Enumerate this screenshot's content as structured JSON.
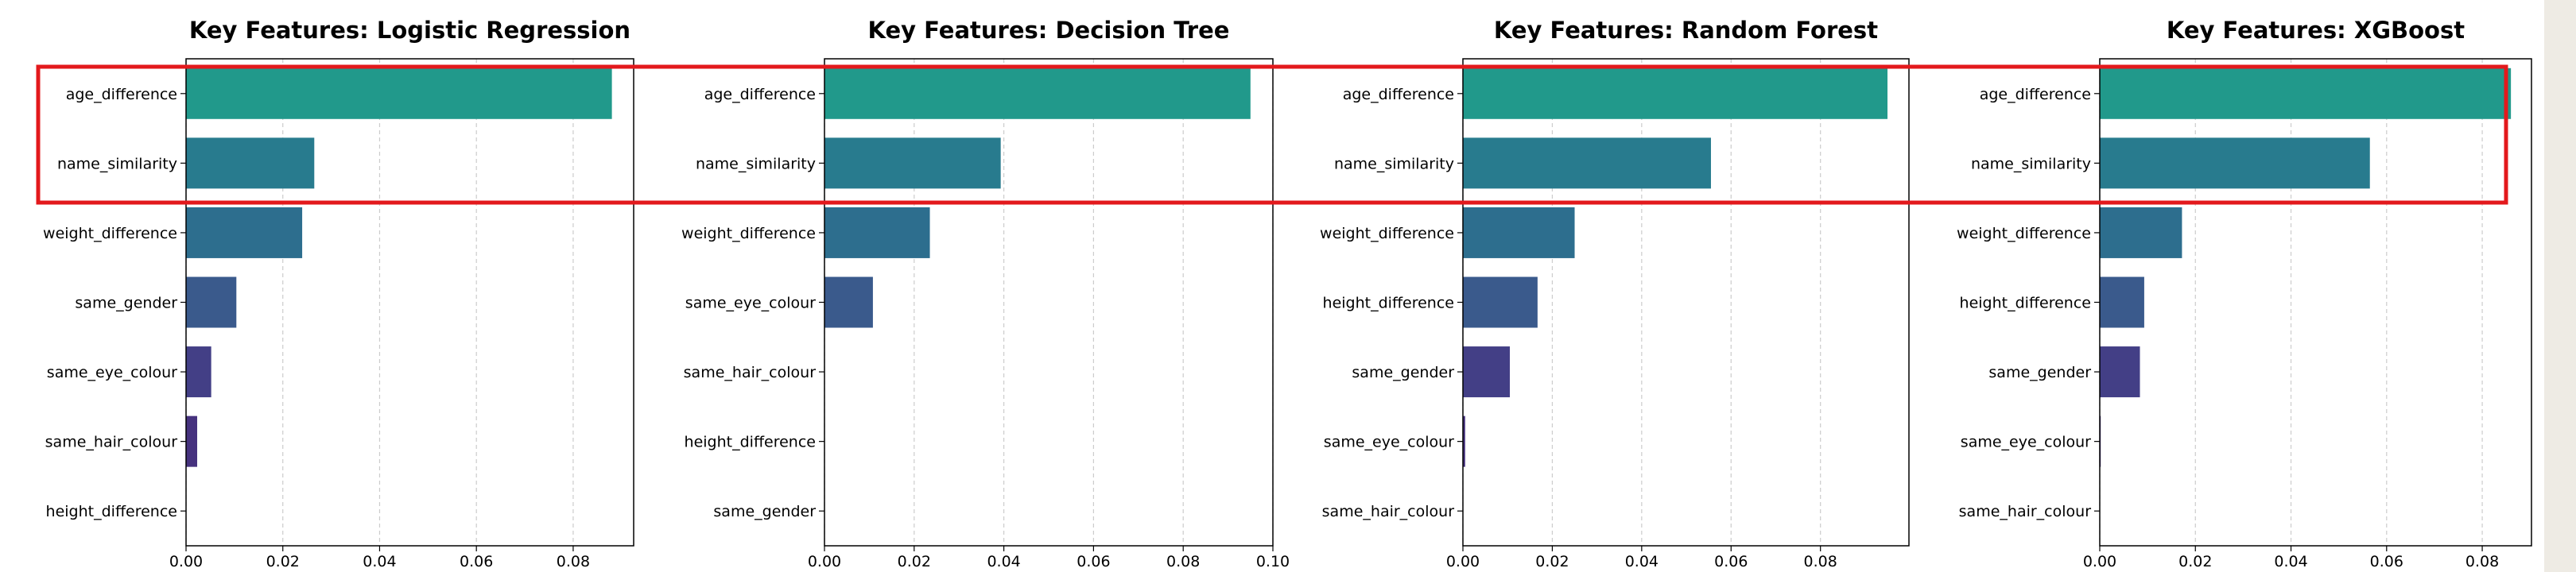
{
  "chart_data": [
    {
      "type": "bar",
      "orientation": "horizontal",
      "title": "Key Features: Logistic Regression",
      "xlabel": "",
      "ylabel": "",
      "categories": [
        "age_difference",
        "name_similarity",
        "weight_difference",
        "same_gender",
        "same_eye_colour",
        "same_hair_colour",
        "height_difference"
      ],
      "values": [
        0.088,
        0.0265,
        0.024,
        0.0104,
        0.0052,
        0.0023,
        0.0
      ],
      "xlim": [
        0,
        0.0925
      ],
      "xticks": [
        "0.00",
        "0.02",
        "0.04",
        "0.06",
        "0.08"
      ],
      "grid": "vertical dashed"
    },
    {
      "type": "bar",
      "orientation": "horizontal",
      "title": "Key Features: Decision Tree",
      "xlabel": "",
      "ylabel": "",
      "categories": [
        "age_difference",
        "name_similarity",
        "weight_difference",
        "same_eye_colour",
        "same_hair_colour",
        "height_difference",
        "same_gender"
      ],
      "values": [
        0.095,
        0.0393,
        0.0235,
        0.0108,
        0.0,
        0.0,
        0.0
      ],
      "xlim": [
        0,
        0.1
      ],
      "xticks": [
        "0.00",
        "0.02",
        "0.04",
        "0.06",
        "0.08",
        "0.10"
      ],
      "grid": "vertical dashed"
    },
    {
      "type": "bar",
      "orientation": "horizontal",
      "title": "Key Features: Random Forest",
      "xlabel": "",
      "ylabel": "",
      "categories": [
        "age_difference",
        "name_similarity",
        "weight_difference",
        "height_difference",
        "same_gender",
        "same_eye_colour",
        "same_hair_colour"
      ],
      "values": [
        0.095,
        0.0555,
        0.025,
        0.0167,
        0.0105,
        0.0005,
        0.0
      ],
      "xlim": [
        0,
        0.0998
      ],
      "xticks": [
        "0.00",
        "0.02",
        "0.04",
        "0.06",
        "0.08"
      ],
      "grid": "vertical dashed"
    },
    {
      "type": "bar",
      "orientation": "horizontal",
      "title": "Key Features: XGBoost",
      "xlabel": "",
      "ylabel": "",
      "categories": [
        "age_difference",
        "name_similarity",
        "weight_difference",
        "height_difference",
        "same_gender",
        "same_eye_colour",
        "same_hair_colour"
      ],
      "values": [
        0.086,
        0.0565,
        0.0172,
        0.0093,
        0.0084,
        0.0002,
        0.0
      ],
      "xlim": [
        0,
        0.0903
      ],
      "xticks": [
        "0.00",
        "0.02",
        "0.04",
        "0.06",
        "0.08"
      ],
      "grid": "vertical dashed"
    }
  ],
  "colors": {
    "bars": [
      "#21998b",
      "#287b8e",
      "#2d6e8e",
      "#3a5a8c",
      "#433f86",
      "#46327e",
      "#440154"
    ],
    "highlight_box": "#e3191c",
    "grid": "#cccccc"
  },
  "highlight": "top two features (age_difference, name_similarity) outlined in red across all panels"
}
